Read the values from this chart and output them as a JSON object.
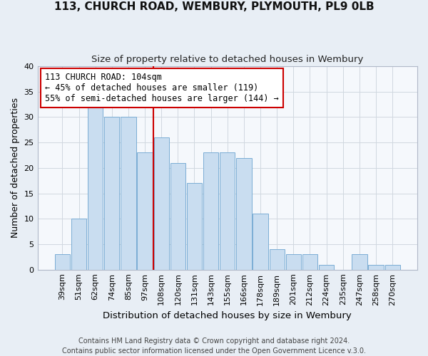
{
  "title": "113, CHURCH ROAD, WEMBURY, PLYMOUTH, PL9 0LB",
  "subtitle": "Size of property relative to detached houses in Wembury",
  "xlabel": "Distribution of detached houses by size in Wembury",
  "ylabel": "Number of detached properties",
  "bar_labels": [
    "39sqm",
    "51sqm",
    "62sqm",
    "74sqm",
    "85sqm",
    "97sqm",
    "108sqm",
    "120sqm",
    "131sqm",
    "143sqm",
    "155sqm",
    "166sqm",
    "178sqm",
    "189sqm",
    "201sqm",
    "212sqm",
    "224sqm",
    "235sqm",
    "247sqm",
    "258sqm",
    "270sqm"
  ],
  "bar_values": [
    3,
    10,
    33,
    30,
    30,
    23,
    26,
    21,
    17,
    23,
    23,
    22,
    11,
    4,
    3,
    3,
    1,
    0,
    3,
    1,
    1
  ],
  "bar_color": "#c9ddf0",
  "bar_edge_color": "#7aadd4",
  "vline_color": "#cc0000",
  "annotation_line1": "113 CHURCH ROAD: 104sqm",
  "annotation_line2": "← 45% of detached houses are smaller (119)",
  "annotation_line3": "55% of semi-detached houses are larger (144) →",
  "annotation_box_facecolor": "#ffffff",
  "annotation_box_edgecolor": "#cc0000",
  "ylim": [
    0,
    40
  ],
  "yticks": [
    0,
    5,
    10,
    15,
    20,
    25,
    30,
    35,
    40
  ],
  "footer_line1": "Contains HM Land Registry data © Crown copyright and database right 2024.",
  "footer_line2": "Contains public sector information licensed under the Open Government Licence v.3.0.",
  "fig_facecolor": "#e8eef5",
  "plot_facecolor": "#f5f8fc",
  "grid_color": "#d0d8e0",
  "title_fontsize": 11,
  "subtitle_fontsize": 9.5,
  "ylabel_fontsize": 9,
  "xlabel_fontsize": 9.5,
  "tick_fontsize": 8,
  "footer_fontsize": 7,
  "annot_fontsize": 8.5
}
